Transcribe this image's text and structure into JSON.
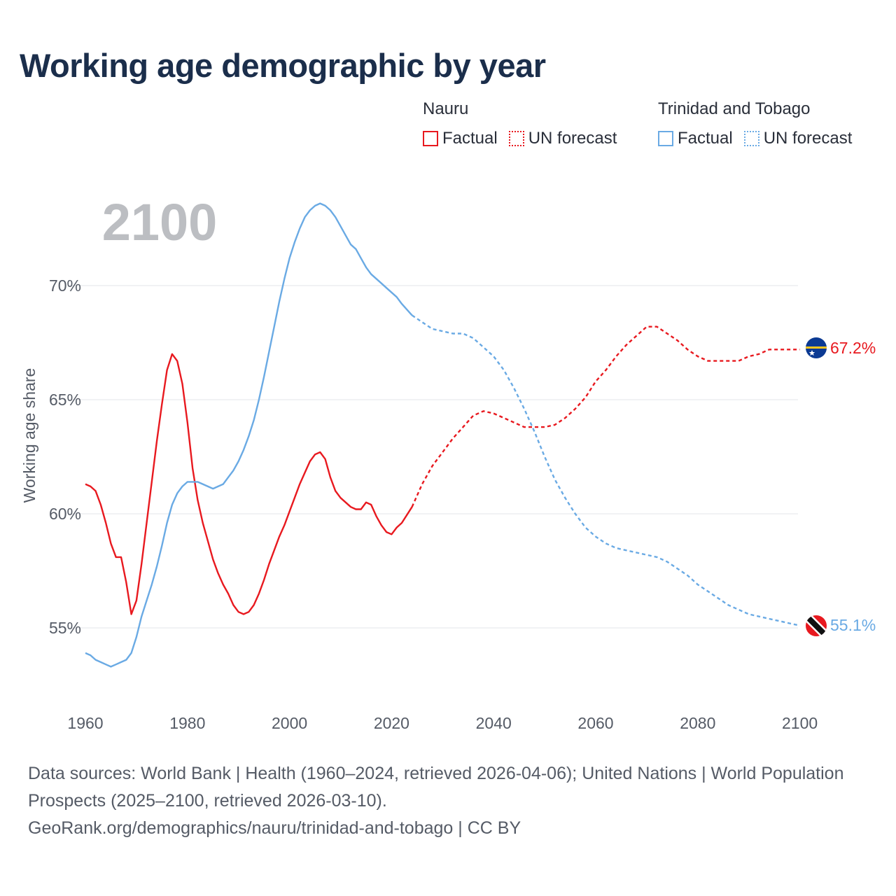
{
  "title": "Working age demographic by year",
  "legend": {
    "groups": [
      {
        "name": "Nauru",
        "factual_label": "Factual",
        "forecast_label": "UN forecast",
        "color": "#e8191f"
      },
      {
        "name": "Trinidad and Tobago",
        "factual_label": "Factual",
        "forecast_label": "UN forecast",
        "color": "#6aaae4"
      }
    ]
  },
  "footer": {
    "sources": "Data sources: World Bank | Health (1960–2024, retrieved 2026-04-06); United Nations | World Population Prospects (2025–2100, retrieved 2026-03-10).",
    "link": "GeoRank.org/demographics/nauru/trinidad-and-tobago | CC BY"
  },
  "chart_data": {
    "type": "line",
    "title": "Working age demographic by year",
    "year_watermark": "2100",
    "xlabel": "",
    "ylabel": "Working age share",
    "xlim": [
      1960,
      2103
    ],
    "ylim": [
      51.6,
      76.6
    ],
    "x_ticks": [
      1960,
      1980,
      2000,
      2020,
      2040,
      2060,
      2080,
      2100
    ],
    "y_ticks": [
      55,
      60,
      65,
      70
    ],
    "y_tick_labels": [
      "55%",
      "60%",
      "65%",
      "70%"
    ],
    "grid": true,
    "forecast_start": 2024,
    "series": [
      {
        "name": "Nauru",
        "color": "#e8191f",
        "end_label": "67.2%",
        "flag": "nauru",
        "points": [
          [
            1960,
            61.3
          ],
          [
            1961,
            61.2
          ],
          [
            1962,
            61.0
          ],
          [
            1963,
            60.4
          ],
          [
            1964,
            59.6
          ],
          [
            1965,
            58.7
          ],
          [
            1966,
            58.1
          ],
          [
            1967,
            58.1
          ],
          [
            1968,
            57.0
          ],
          [
            1969,
            55.6
          ],
          [
            1970,
            56.2
          ],
          [
            1971,
            57.8
          ],
          [
            1972,
            59.6
          ],
          [
            1973,
            61.4
          ],
          [
            1974,
            63.2
          ],
          [
            1975,
            64.8
          ],
          [
            1976,
            66.3
          ],
          [
            1977,
            67.0
          ],
          [
            1978,
            66.7
          ],
          [
            1979,
            65.7
          ],
          [
            1980,
            64.0
          ],
          [
            1981,
            62.0
          ],
          [
            1982,
            60.6
          ],
          [
            1983,
            59.6
          ],
          [
            1984,
            58.8
          ],
          [
            1985,
            58.0
          ],
          [
            1986,
            57.4
          ],
          [
            1987,
            56.9
          ],
          [
            1988,
            56.5
          ],
          [
            1989,
            56.0
          ],
          [
            1990,
            55.7
          ],
          [
            1991,
            55.6
          ],
          [
            1992,
            55.7
          ],
          [
            1993,
            56.0
          ],
          [
            1994,
            56.5
          ],
          [
            1995,
            57.1
          ],
          [
            1996,
            57.8
          ],
          [
            1997,
            58.4
          ],
          [
            1998,
            59.0
          ],
          [
            1999,
            59.5
          ],
          [
            2000,
            60.1
          ],
          [
            2001,
            60.7
          ],
          [
            2002,
            61.3
          ],
          [
            2003,
            61.8
          ],
          [
            2004,
            62.3
          ],
          [
            2005,
            62.6
          ],
          [
            2006,
            62.7
          ],
          [
            2007,
            62.4
          ],
          [
            2008,
            61.6
          ],
          [
            2009,
            61.0
          ],
          [
            2010,
            60.7
          ],
          [
            2011,
            60.5
          ],
          [
            2012,
            60.3
          ],
          [
            2013,
            60.2
          ],
          [
            2014,
            60.2
          ],
          [
            2015,
            60.5
          ],
          [
            2016,
            60.4
          ],
          [
            2017,
            59.9
          ],
          [
            2018,
            59.5
          ],
          [
            2019,
            59.2
          ],
          [
            2020,
            59.1
          ],
          [
            2021,
            59.4
          ],
          [
            2022,
            59.6
          ],
          [
            2024,
            60.3
          ],
          [
            2026,
            61.3
          ],
          [
            2028,
            62.1
          ],
          [
            2030,
            62.7
          ],
          [
            2032,
            63.3
          ],
          [
            2034,
            63.8
          ],
          [
            2036,
            64.3
          ],
          [
            2038,
            64.5
          ],
          [
            2040,
            64.4
          ],
          [
            2042,
            64.2
          ],
          [
            2044,
            64.0
          ],
          [
            2046,
            63.8
          ],
          [
            2048,
            63.8
          ],
          [
            2050,
            63.8
          ],
          [
            2052,
            63.9
          ],
          [
            2054,
            64.2
          ],
          [
            2056,
            64.6
          ],
          [
            2058,
            65.1
          ],
          [
            2060,
            65.8
          ],
          [
            2062,
            66.3
          ],
          [
            2064,
            66.9
          ],
          [
            2066,
            67.4
          ],
          [
            2068,
            67.8
          ],
          [
            2070,
            68.2
          ],
          [
            2072,
            68.2
          ],
          [
            2074,
            67.9
          ],
          [
            2076,
            67.6
          ],
          [
            2078,
            67.2
          ],
          [
            2080,
            66.9
          ],
          [
            2082,
            66.7
          ],
          [
            2084,
            66.7
          ],
          [
            2086,
            66.7
          ],
          [
            2088,
            66.7
          ],
          [
            2090,
            66.9
          ],
          [
            2092,
            67.0
          ],
          [
            2094,
            67.2
          ],
          [
            2096,
            67.2
          ],
          [
            2098,
            67.2
          ],
          [
            2100,
            67.2
          ]
        ]
      },
      {
        "name": "Trinidad and Tobago",
        "color": "#6aaae4",
        "end_label": "55.1%",
        "flag": "trinidad-and-tobago",
        "points": [
          [
            1960,
            53.9
          ],
          [
            1961,
            53.8
          ],
          [
            1962,
            53.6
          ],
          [
            1963,
            53.5
          ],
          [
            1964,
            53.4
          ],
          [
            1965,
            53.3
          ],
          [
            1966,
            53.4
          ],
          [
            1967,
            53.5
          ],
          [
            1968,
            53.6
          ],
          [
            1969,
            53.9
          ],
          [
            1970,
            54.6
          ],
          [
            1971,
            55.5
          ],
          [
            1972,
            56.2
          ],
          [
            1973,
            56.9
          ],
          [
            1974,
            57.7
          ],
          [
            1975,
            58.6
          ],
          [
            1976,
            59.6
          ],
          [
            1977,
            60.4
          ],
          [
            1978,
            60.9
          ],
          [
            1979,
            61.2
          ],
          [
            1980,
            61.4
          ],
          [
            1981,
            61.4
          ],
          [
            1982,
            61.4
          ],
          [
            1983,
            61.3
          ],
          [
            1984,
            61.2
          ],
          [
            1985,
            61.1
          ],
          [
            1986,
            61.2
          ],
          [
            1987,
            61.3
          ],
          [
            1988,
            61.6
          ],
          [
            1989,
            61.9
          ],
          [
            1990,
            62.3
          ],
          [
            1991,
            62.8
          ],
          [
            1992,
            63.4
          ],
          [
            1993,
            64.1
          ],
          [
            1994,
            65.0
          ],
          [
            1995,
            66.0
          ],
          [
            1996,
            67.1
          ],
          [
            1997,
            68.2
          ],
          [
            1998,
            69.3
          ],
          [
            1999,
            70.3
          ],
          [
            2000,
            71.2
          ],
          [
            2001,
            71.9
          ],
          [
            2002,
            72.5
          ],
          [
            2003,
            73.0
          ],
          [
            2004,
            73.3
          ],
          [
            2005,
            73.5
          ],
          [
            2006,
            73.6
          ],
          [
            2007,
            73.5
          ],
          [
            2008,
            73.3
          ],
          [
            2009,
            73.0
          ],
          [
            2010,
            72.6
          ],
          [
            2011,
            72.2
          ],
          [
            2012,
            71.8
          ],
          [
            2013,
            71.6
          ],
          [
            2014,
            71.2
          ],
          [
            2015,
            70.8
          ],
          [
            2016,
            70.5
          ],
          [
            2017,
            70.3
          ],
          [
            2018,
            70.1
          ],
          [
            2019,
            69.9
          ],
          [
            2020,
            69.7
          ],
          [
            2021,
            69.5
          ],
          [
            2022,
            69.2
          ],
          [
            2024,
            68.7
          ],
          [
            2026,
            68.4
          ],
          [
            2028,
            68.1
          ],
          [
            2030,
            68.0
          ],
          [
            2032,
            67.9
          ],
          [
            2034,
            67.9
          ],
          [
            2036,
            67.7
          ],
          [
            2038,
            67.3
          ],
          [
            2040,
            66.9
          ],
          [
            2042,
            66.3
          ],
          [
            2044,
            65.5
          ],
          [
            2046,
            64.6
          ],
          [
            2048,
            63.6
          ],
          [
            2050,
            62.5
          ],
          [
            2052,
            61.5
          ],
          [
            2054,
            60.7
          ],
          [
            2056,
            60.0
          ],
          [
            2058,
            59.4
          ],
          [
            2060,
            59.0
          ],
          [
            2062,
            58.7
          ],
          [
            2064,
            58.5
          ],
          [
            2066,
            58.4
          ],
          [
            2068,
            58.3
          ],
          [
            2070,
            58.2
          ],
          [
            2072,
            58.1
          ],
          [
            2074,
            57.9
          ],
          [
            2076,
            57.6
          ],
          [
            2078,
            57.3
          ],
          [
            2080,
            56.9
          ],
          [
            2082,
            56.6
          ],
          [
            2084,
            56.3
          ],
          [
            2086,
            56.0
          ],
          [
            2088,
            55.8
          ],
          [
            2090,
            55.6
          ],
          [
            2092,
            55.5
          ],
          [
            2094,
            55.4
          ],
          [
            2096,
            55.3
          ],
          [
            2098,
            55.2
          ],
          [
            2100,
            55.1
          ]
        ]
      }
    ]
  }
}
